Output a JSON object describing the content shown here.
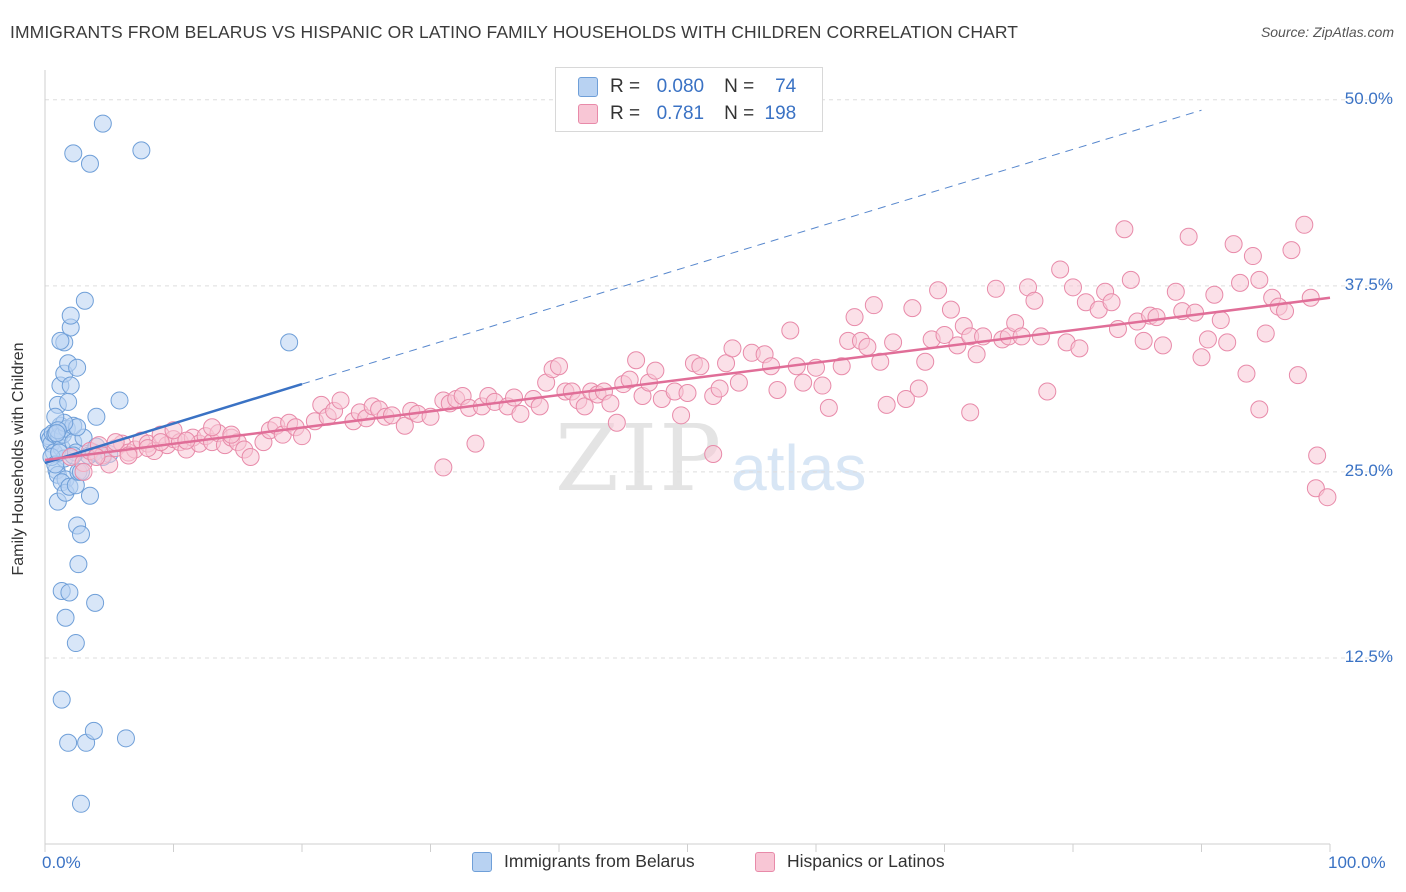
{
  "title": "IMMIGRANTS FROM BELARUS VS HISPANIC OR LATINO FAMILY HOUSEHOLDS WITH CHILDREN CORRELATION CHART",
  "source": "Source: ZipAtlas.com",
  "watermark": {
    "zip": "ZIP",
    "atlas": "atlas"
  },
  "legend": {
    "r_label": "R =",
    "n_label": "N =",
    "rows": [
      {
        "r": "0.080",
        "n": "74",
        "fill": "#b8d2f2",
        "stroke": "#6f9fd8"
      },
      {
        "r": "0.781",
        "n": "198",
        "fill": "#f8c6d5",
        "stroke": "#e88aa9"
      }
    ]
  },
  "chart_data": {
    "type": "scatter",
    "title": "IMMIGRANTS FROM BELARUS VS HISPANIC OR LATINO FAMILY HOUSEHOLDS WITH CHILDREN CORRELATION CHART",
    "xlabel": "",
    "ylabel": "Family Households with Children",
    "xlim": [
      0,
      100
    ],
    "ylim": [
      0,
      52
    ],
    "x_tick_labels": [
      "0.0%",
      "100.0%"
    ],
    "y_ticks": [
      {
        "value": 50.0,
        "label": "50.0%"
      },
      {
        "value": 37.5,
        "label": "37.5%"
      },
      {
        "value": 25.0,
        "label": "25.0%"
      },
      {
        "value": 12.5,
        "label": "12.5%"
      }
    ],
    "grid": true,
    "legend_position": "top-center",
    "series": [
      {
        "name": "Immigrants from Belarus",
        "color": "#3a72c4",
        "fill": "#b8d2f2",
        "stroke": "#6f9fd8",
        "trend": {
          "x0": 0,
          "y0": 25.6,
          "x1": 20,
          "y1": 30.9,
          "dashed_to_x": 90,
          "dashed_to_y": 49.3
        },
        "points": [
          [
            0.3,
            27.4
          ],
          [
            0.4,
            27.2
          ],
          [
            0.5,
            26.9
          ],
          [
            0.6,
            27.6
          ],
          [
            0.7,
            26.3
          ],
          [
            0.8,
            27.5
          ],
          [
            0.9,
            25.1
          ],
          [
            1.0,
            24.8
          ],
          [
            1.1,
            27.4
          ],
          [
            1.2,
            28.1
          ],
          [
            1.3,
            26.6
          ],
          [
            1.4,
            27.5
          ],
          [
            1.5,
            25.9
          ],
          [
            1.6,
            24.5
          ],
          [
            1.7,
            27.9
          ],
          [
            0.5,
            26.0
          ],
          [
            0.8,
            25.5
          ],
          [
            1.0,
            29.5
          ],
          [
            1.2,
            30.8
          ],
          [
            1.5,
            31.6
          ],
          [
            1.8,
            32.3
          ],
          [
            2.0,
            30.8
          ],
          [
            2.2,
            27.0
          ],
          [
            2.4,
            26.3
          ],
          [
            1.0,
            23.0
          ],
          [
            1.3,
            24.3
          ],
          [
            1.6,
            23.6
          ],
          [
            1.9,
            24.0
          ],
          [
            2.4,
            24.1
          ],
          [
            2.6,
            25.0
          ],
          [
            3.0,
            27.3
          ],
          [
            3.4,
            26.1
          ],
          [
            3.8,
            26.3
          ],
          [
            4.0,
            26.7
          ],
          [
            4.5,
            26.0
          ],
          [
            5.0,
            26.2
          ],
          [
            2.2,
            28.1
          ],
          [
            2.5,
            28.0
          ],
          [
            1.5,
            33.7
          ],
          [
            1.2,
            33.8
          ],
          [
            2.0,
            34.7
          ],
          [
            2.0,
            35.5
          ],
          [
            2.5,
            32.0
          ],
          [
            3.1,
            36.5
          ],
          [
            1.8,
            29.7
          ],
          [
            1.5,
            28.3
          ],
          [
            2.2,
            26.1
          ],
          [
            2.8,
            25.0
          ],
          [
            3.5,
            23.4
          ],
          [
            4.0,
            28.7
          ],
          [
            5.8,
            29.8
          ],
          [
            2.5,
            21.4
          ],
          [
            2.8,
            20.8
          ],
          [
            2.6,
            18.8
          ],
          [
            1.3,
            17.0
          ],
          [
            1.9,
            16.9
          ],
          [
            1.6,
            15.2
          ],
          [
            3.9,
            16.2
          ],
          [
            2.4,
            13.5
          ],
          [
            1.3,
            9.7
          ],
          [
            1.8,
            6.8
          ],
          [
            3.2,
            6.8
          ],
          [
            3.8,
            7.6
          ],
          [
            6.3,
            7.1
          ],
          [
            2.8,
            2.7
          ],
          [
            0.8,
            28.7
          ],
          [
            1.0,
            27.8
          ],
          [
            2.2,
            46.4
          ],
          [
            3.5,
            45.7
          ],
          [
            4.5,
            48.4
          ],
          [
            7.5,
            46.6
          ],
          [
            19.0,
            33.7
          ],
          [
            0.9,
            27.6
          ],
          [
            1.1,
            26.3
          ]
        ]
      },
      {
        "name": "Hispanics or Latinos",
        "color": "#e06e98",
        "fill": "#f8c6d5",
        "stroke": "#e88aa9",
        "trend": {
          "x0": 0,
          "y0": 25.8,
          "x1": 100,
          "y1": 36.7
        },
        "points": [
          [
            2.0,
            26.0
          ],
          [
            3.0,
            25.6
          ],
          [
            3.5,
            26.4
          ],
          [
            4.2,
            26.8
          ],
          [
            4.5,
            26.1
          ],
          [
            5.0,
            25.5
          ],
          [
            5.5,
            26.6
          ],
          [
            6.0,
            26.9
          ],
          [
            6.5,
            26.3
          ],
          [
            7.0,
            26.5
          ],
          [
            7.5,
            27.1
          ],
          [
            8.0,
            26.9
          ],
          [
            8.5,
            26.4
          ],
          [
            9.0,
            27.5
          ],
          [
            9.5,
            26.8
          ],
          [
            10.0,
            27.2
          ],
          [
            10.5,
            27.0
          ],
          [
            11.0,
            26.5
          ],
          [
            11.5,
            27.3
          ],
          [
            12.0,
            26.9
          ],
          [
            12.5,
            27.4
          ],
          [
            13.0,
            27.0
          ],
          [
            13.5,
            27.6
          ],
          [
            14.0,
            26.8
          ],
          [
            14.5,
            27.3
          ],
          [
            15.0,
            27.0
          ],
          [
            3.0,
            25.0
          ],
          [
            4.0,
            26.0
          ],
          [
            5.5,
            27.0
          ],
          [
            6.5,
            26.1
          ],
          [
            8.0,
            26.6
          ],
          [
            9.0,
            27.0
          ],
          [
            10.0,
            27.8
          ],
          [
            11.0,
            27.1
          ],
          [
            13.0,
            28.0
          ],
          [
            14.5,
            27.5
          ],
          [
            15.5,
            26.5
          ],
          [
            16.0,
            26.0
          ],
          [
            17.0,
            27.0
          ],
          [
            17.5,
            27.8
          ],
          [
            18.0,
            28.1
          ],
          [
            18.5,
            27.5
          ],
          [
            19.0,
            28.3
          ],
          [
            19.5,
            28.0
          ],
          [
            20.0,
            27.4
          ],
          [
            21.0,
            28.4
          ],
          [
            21.5,
            29.5
          ],
          [
            22.0,
            28.7
          ],
          [
            22.5,
            29.1
          ],
          [
            23.0,
            29.8
          ],
          [
            24.0,
            28.4
          ],
          [
            24.5,
            29.0
          ],
          [
            25.0,
            28.6
          ],
          [
            25.5,
            29.4
          ],
          [
            26.0,
            29.2
          ],
          [
            26.5,
            28.7
          ],
          [
            27.0,
            28.8
          ],
          [
            28.0,
            28.1
          ],
          [
            28.5,
            29.1
          ],
          [
            29.0,
            28.9
          ],
          [
            30.0,
            28.7
          ],
          [
            31.0,
            29.8
          ],
          [
            31.5,
            29.6
          ],
          [
            32.0,
            29.9
          ],
          [
            32.5,
            30.1
          ],
          [
            33.0,
            29.3
          ],
          [
            34.0,
            29.4
          ],
          [
            34.5,
            30.1
          ],
          [
            35.0,
            29.7
          ],
          [
            36.0,
            29.4
          ],
          [
            36.5,
            30.0
          ],
          [
            37.0,
            28.9
          ],
          [
            38.0,
            29.9
          ],
          [
            38.5,
            29.4
          ],
          [
            39.0,
            31.0
          ],
          [
            39.5,
            31.9
          ],
          [
            40.0,
            32.1
          ],
          [
            40.5,
            30.4
          ],
          [
            41.0,
            30.4
          ],
          [
            41.5,
            29.8
          ],
          [
            42.0,
            29.4
          ],
          [
            42.5,
            30.4
          ],
          [
            43.0,
            30.2
          ],
          [
            43.5,
            30.4
          ],
          [
            44.0,
            29.6
          ],
          [
            45.0,
            30.9
          ],
          [
            45.5,
            31.2
          ],
          [
            46.0,
            32.5
          ],
          [
            46.5,
            30.1
          ],
          [
            47.0,
            31.0
          ],
          [
            47.5,
            31.8
          ],
          [
            48.0,
            29.9
          ],
          [
            49.0,
            30.4
          ],
          [
            49.5,
            28.8
          ],
          [
            50.0,
            30.3
          ],
          [
            50.5,
            32.3
          ],
          [
            51.0,
            32.1
          ],
          [
            52.0,
            30.1
          ],
          [
            52.5,
            30.6
          ],
          [
            53.0,
            32.3
          ],
          [
            53.5,
            33.3
          ],
          [
            54.0,
            31.0
          ],
          [
            55.0,
            33.0
          ],
          [
            56.0,
            32.9
          ],
          [
            56.5,
            32.1
          ],
          [
            57.0,
            30.5
          ],
          [
            58.0,
            34.5
          ],
          [
            58.5,
            32.1
          ],
          [
            59.0,
            31.0
          ],
          [
            60.0,
            32.0
          ],
          [
            60.5,
            30.8
          ],
          [
            61.0,
            29.3
          ],
          [
            62.0,
            32.1
          ],
          [
            62.5,
            33.8
          ],
          [
            63.0,
            35.4
          ],
          [
            63.5,
            33.8
          ],
          [
            64.0,
            33.4
          ],
          [
            64.5,
            36.2
          ],
          [
            65.0,
            32.4
          ],
          [
            65.5,
            29.5
          ],
          [
            66.0,
            33.7
          ],
          [
            67.0,
            29.9
          ],
          [
            67.5,
            36.0
          ],
          [
            68.0,
            30.6
          ],
          [
            68.5,
            32.4
          ],
          [
            69.0,
            33.9
          ],
          [
            69.5,
            37.2
          ],
          [
            70.0,
            34.2
          ],
          [
            70.5,
            35.9
          ],
          [
            71.0,
            33.5
          ],
          [
            71.5,
            34.8
          ],
          [
            72.0,
            34.1
          ],
          [
            72.5,
            32.9
          ],
          [
            73.0,
            34.1
          ],
          [
            74.0,
            37.3
          ],
          [
            74.5,
            33.9
          ],
          [
            75.0,
            34.1
          ],
          [
            75.5,
            35.0
          ],
          [
            76.0,
            34.1
          ],
          [
            76.5,
            37.4
          ],
          [
            77.0,
            36.5
          ],
          [
            77.5,
            34.1
          ],
          [
            78.0,
            30.4
          ],
          [
            79.0,
            38.6
          ],
          [
            79.5,
            33.7
          ],
          [
            80.0,
            37.4
          ],
          [
            80.5,
            33.3
          ],
          [
            81.0,
            36.4
          ],
          [
            82.0,
            35.9
          ],
          [
            82.5,
            37.1
          ],
          [
            83.0,
            36.4
          ],
          [
            83.5,
            34.6
          ],
          [
            84.0,
            41.3
          ],
          [
            84.5,
            37.9
          ],
          [
            85.0,
            35.1
          ],
          [
            85.5,
            33.8
          ],
          [
            86.0,
            35.5
          ],
          [
            86.5,
            35.4
          ],
          [
            87.0,
            33.5
          ],
          [
            88.0,
            37.1
          ],
          [
            88.5,
            35.8
          ],
          [
            89.0,
            40.8
          ],
          [
            89.5,
            35.7
          ],
          [
            90.0,
            32.7
          ],
          [
            90.5,
            33.9
          ],
          [
            91.0,
            36.9
          ],
          [
            91.5,
            35.2
          ],
          [
            92.0,
            33.7
          ],
          [
            92.5,
            40.3
          ],
          [
            93.0,
            37.7
          ],
          [
            93.5,
            31.6
          ],
          [
            94.0,
            39.5
          ],
          [
            94.5,
            37.9
          ],
          [
            95.0,
            34.3
          ],
          [
            95.5,
            36.7
          ],
          [
            96.0,
            36.1
          ],
          [
            96.5,
            35.8
          ],
          [
            97.0,
            39.9
          ],
          [
            97.5,
            31.5
          ],
          [
            98.0,
            41.6
          ],
          [
            98.5,
            36.7
          ],
          [
            99.0,
            26.1
          ],
          [
            98.9,
            23.9
          ],
          [
            99.8,
            23.3
          ],
          [
            94.5,
            29.2
          ],
          [
            72.0,
            29.0
          ],
          [
            52.0,
            26.2
          ],
          [
            44.5,
            28.3
          ],
          [
            33.5,
            26.9
          ],
          [
            31.0,
            25.3
          ]
        ]
      }
    ]
  }
}
